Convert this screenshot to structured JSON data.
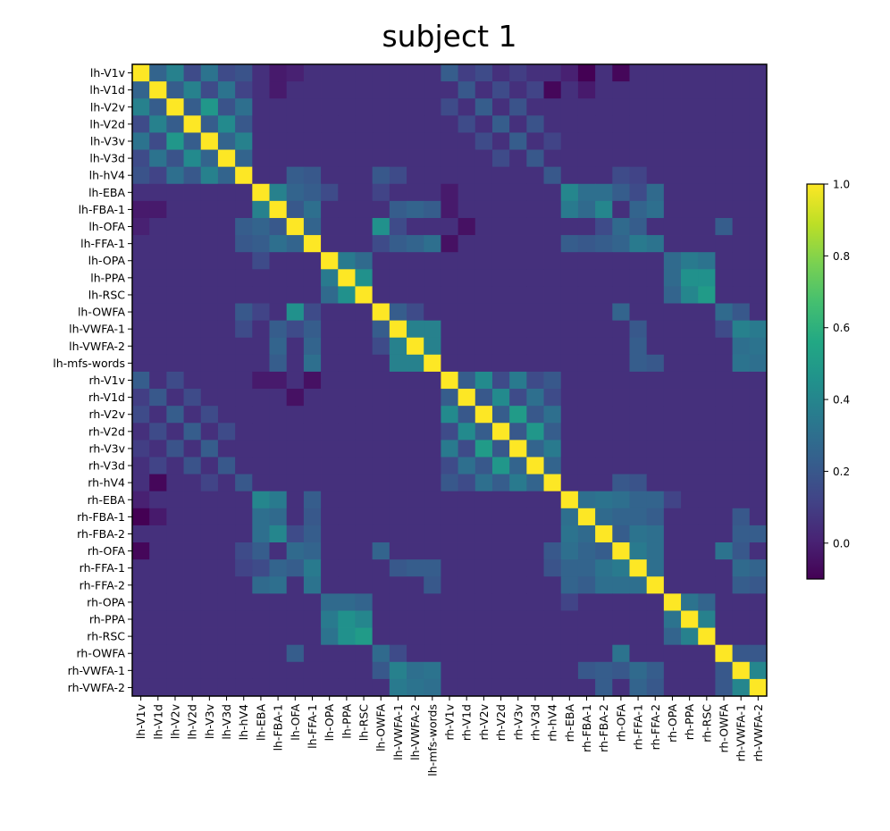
{
  "chart_data": {
    "type": "heatmap",
    "title": "subject 1",
    "xlabel": "",
    "ylabel": "",
    "labels": [
      "lh-V1v",
      "lh-V1d",
      "lh-V2v",
      "lh-V2d",
      "lh-V3v",
      "lh-V3d",
      "lh-hV4",
      "lh-EBA",
      "lh-FBA-1",
      "lh-OFA",
      "lh-FFA-1",
      "lh-OPA",
      "lh-PPA",
      "lh-RSC",
      "lh-OWFA",
      "lh-VWFA-1",
      "lh-VWFA-2",
      "lh-mfs-words",
      "rh-V1v",
      "rh-V1d",
      "rh-V2v",
      "rh-V2d",
      "rh-V3v",
      "rh-V3d",
      "rh-hV4",
      "rh-EBA",
      "rh-FBA-1",
      "rh-FBA-2",
      "rh-OFA",
      "rh-FFA-1",
      "rh-FFA-2",
      "rh-OPA",
      "rh-PPA",
      "rh-RSC",
      "rh-OWFA",
      "rh-VWFA-1",
      "rh-VWFA-2"
    ],
    "colorbar": {
      "range": [
        -0.1,
        1.0
      ],
      "ticks": [
        0.0,
        0.2,
        0.4,
        0.6,
        0.8,
        1.0
      ],
      "tick_labels": [
        "0.0",
        "0.2",
        "0.4",
        "0.6",
        "0.8",
        "1.0"
      ],
      "colormap": "viridis"
    },
    "default_value": 0.05,
    "diagonal_value": 1.0,
    "pairs": [
      [
        "lh-V1v",
        "lh-V1d",
        0.25
      ],
      [
        "lh-V1v",
        "lh-V2v",
        0.38
      ],
      [
        "lh-V1v",
        "lh-V2d",
        0.15
      ],
      [
        "lh-V1v",
        "lh-V3v",
        0.32
      ],
      [
        "lh-V1v",
        "lh-V3d",
        0.15
      ],
      [
        "lh-V1v",
        "lh-hV4",
        0.18
      ],
      [
        "lh-V1d",
        "lh-V2v",
        0.22
      ],
      [
        "lh-V1d",
        "lh-V2d",
        0.38
      ],
      [
        "lh-V1d",
        "lh-V3v",
        0.15
      ],
      [
        "lh-V1d",
        "lh-V3d",
        0.32
      ],
      [
        "lh-V1d",
        "lh-hV4",
        0.12
      ],
      [
        "lh-V2v",
        "lh-V2d",
        0.22
      ],
      [
        "lh-V2v",
        "lh-V3v",
        0.48
      ],
      [
        "lh-V2v",
        "lh-V3d",
        0.18
      ],
      [
        "lh-V2v",
        "lh-hV4",
        0.3
      ],
      [
        "lh-V2d",
        "lh-V3v",
        0.22
      ],
      [
        "lh-V2d",
        "lh-V3d",
        0.42
      ],
      [
        "lh-V2d",
        "lh-hV4",
        0.2
      ],
      [
        "lh-V3v",
        "lh-V3d",
        0.25
      ],
      [
        "lh-V3v",
        "lh-hV4",
        0.38
      ],
      [
        "lh-V3d",
        "lh-hV4",
        0.25
      ],
      [
        "lh-hV4",
        "lh-OFA",
        0.22
      ],
      [
        "lh-hV4",
        "lh-FFA-1",
        0.2
      ],
      [
        "lh-hV4",
        "lh-OWFA",
        0.2
      ],
      [
        "lh-hV4",
        "lh-VWFA-1",
        0.15
      ],
      [
        "lh-EBA",
        "lh-FBA-1",
        0.38
      ],
      [
        "lh-EBA",
        "lh-OFA",
        0.25
      ],
      [
        "lh-EBA",
        "lh-FFA-1",
        0.22
      ],
      [
        "lh-EBA",
        "lh-OPA",
        0.15
      ],
      [
        "lh-EBA",
        "lh-OWFA",
        0.12
      ],
      [
        "lh-FBA-1",
        "lh-OFA",
        0.2
      ],
      [
        "lh-FBA-1",
        "lh-FFA-1",
        0.3
      ],
      [
        "lh-FBA-1",
        "lh-VWFA-1",
        0.22
      ],
      [
        "lh-FBA-1",
        "lh-VWFA-2",
        0.25
      ],
      [
        "lh-FBA-1",
        "lh-mfs-words",
        0.22
      ],
      [
        "lh-OFA",
        "lh-FFA-1",
        0.25
      ],
      [
        "lh-OFA",
        "lh-OWFA",
        0.45
      ],
      [
        "lh-OFA",
        "lh-VWFA-1",
        0.15
      ],
      [
        "lh-FFA-1",
        "lh-VWFA-1",
        0.22
      ],
      [
        "lh-FFA-1",
        "lh-VWFA-2",
        0.25
      ],
      [
        "lh-FFA-1",
        "lh-mfs-words",
        0.3
      ],
      [
        "lh-FFA-1",
        "lh-OWFA",
        0.15
      ],
      [
        "lh-OPA",
        "lh-PPA",
        0.35
      ],
      [
        "lh-OPA",
        "lh-RSC",
        0.28
      ],
      [
        "lh-PPA",
        "lh-RSC",
        0.45
      ],
      [
        "lh-OWFA",
        "lh-VWFA-1",
        0.22
      ],
      [
        "lh-OWFA",
        "lh-VWFA-2",
        0.15
      ],
      [
        "lh-VWFA-1",
        "lh-VWFA-2",
        0.38
      ],
      [
        "lh-VWFA-1",
        "lh-mfs-words",
        0.38
      ],
      [
        "lh-VWFA-2",
        "lh-mfs-words",
        0.38
      ],
      [
        "rh-V1v",
        "rh-V1d",
        0.22
      ],
      [
        "rh-V1v",
        "rh-V2v",
        0.42
      ],
      [
        "rh-V1v",
        "rh-V2d",
        0.15
      ],
      [
        "rh-V1v",
        "rh-V3v",
        0.35
      ],
      [
        "rh-V1v",
        "rh-V3d",
        0.15
      ],
      [
        "rh-V1v",
        "rh-hV4",
        0.2
      ],
      [
        "rh-V1d",
        "rh-V2v",
        0.2
      ],
      [
        "rh-V1d",
        "rh-V2d",
        0.42
      ],
      [
        "rh-V1d",
        "rh-V3v",
        0.15
      ],
      [
        "rh-V1d",
        "rh-V3d",
        0.3
      ],
      [
        "rh-V1d",
        "rh-hV4",
        0.15
      ],
      [
        "rh-V2v",
        "rh-V2d",
        0.22
      ],
      [
        "rh-V2v",
        "rh-V3v",
        0.5
      ],
      [
        "rh-V2v",
        "rh-V3d",
        0.2
      ],
      [
        "rh-V2v",
        "rh-hV4",
        0.3
      ],
      [
        "rh-V2d",
        "rh-V3v",
        0.2
      ],
      [
        "rh-V2d",
        "rh-V3d",
        0.48
      ],
      [
        "rh-V2d",
        "rh-hV4",
        0.22
      ],
      [
        "rh-V3v",
        "rh-V3d",
        0.25
      ],
      [
        "rh-V3v",
        "rh-hV4",
        0.35
      ],
      [
        "rh-V3d",
        "rh-hV4",
        0.25
      ],
      [
        "rh-hV4",
        "rh-OFA",
        0.2
      ],
      [
        "rh-hV4",
        "rh-FFA-1",
        0.18
      ],
      [
        "rh-EBA",
        "rh-FBA-1",
        0.3
      ],
      [
        "rh-EBA",
        "rh-FBA-2",
        0.32
      ],
      [
        "rh-EBA",
        "rh-OFA",
        0.3
      ],
      [
        "rh-EBA",
        "rh-FFA-1",
        0.25
      ],
      [
        "rh-EBA",
        "rh-FFA-2",
        0.25
      ],
      [
        "rh-EBA",
        "rh-OPA",
        0.12
      ],
      [
        "rh-FBA-1",
        "rh-FBA-2",
        0.28
      ],
      [
        "rh-FBA-1",
        "rh-OFA",
        0.25
      ],
      [
        "rh-FBA-1",
        "rh-FFA-1",
        0.25
      ],
      [
        "rh-FBA-1",
        "rh-FFA-2",
        0.22
      ],
      [
        "rh-FBA-1",
        "rh-VWFA-1",
        0.2
      ],
      [
        "rh-FBA-2",
        "rh-OFA",
        0.22
      ],
      [
        "rh-FBA-2",
        "rh-FFA-1",
        0.32
      ],
      [
        "rh-FBA-2",
        "rh-FFA-2",
        0.3
      ],
      [
        "rh-FBA-2",
        "rh-VWFA-1",
        0.22
      ],
      [
        "rh-FBA-2",
        "rh-VWFA-2",
        0.22
      ],
      [
        "rh-OFA",
        "rh-FFA-1",
        0.35
      ],
      [
        "rh-OFA",
        "rh-FFA-2",
        0.3
      ],
      [
        "rh-OFA",
        "rh-OWFA",
        0.32
      ],
      [
        "rh-OFA",
        "rh-VWFA-1",
        0.2
      ],
      [
        "rh-FFA-1",
        "rh-FFA-2",
        0.3
      ],
      [
        "rh-FFA-1",
        "rh-VWFA-1",
        0.28
      ],
      [
        "rh-FFA-1",
        "rh-VWFA-2",
        0.25
      ],
      [
        "rh-FFA-2",
        "rh-VWFA-1",
        0.22
      ],
      [
        "rh-FFA-2",
        "rh-VWFA-2",
        0.2
      ],
      [
        "rh-OPA",
        "rh-PPA",
        0.32
      ],
      [
        "rh-OPA",
        "rh-RSC",
        0.25
      ],
      [
        "rh-PPA",
        "rh-RSC",
        0.38
      ],
      [
        "rh-OWFA",
        "rh-VWFA-1",
        0.2
      ],
      [
        "rh-OWFA",
        "rh-VWFA-2",
        0.2
      ],
      [
        "rh-VWFA-1",
        "rh-VWFA-2",
        0.4
      ],
      [
        "lh-V1v",
        "rh-V1v",
        0.22
      ],
      [
        "lh-V1v",
        "rh-V1d",
        0.1
      ],
      [
        "lh-V1v",
        "rh-V2v",
        0.15
      ],
      [
        "lh-V1v",
        "rh-V3v",
        0.1
      ],
      [
        "lh-V1d",
        "rh-V1d",
        0.2
      ],
      [
        "lh-V1d",
        "rh-V2d",
        0.15
      ],
      [
        "lh-V1d",
        "rh-V3d",
        0.12
      ],
      [
        "lh-V2v",
        "rh-V2v",
        0.22
      ],
      [
        "lh-V2v",
        "rh-V3v",
        0.18
      ],
      [
        "lh-V2v",
        "rh-V1v",
        0.15
      ],
      [
        "lh-V2d",
        "rh-V2d",
        0.22
      ],
      [
        "lh-V2d",
        "rh-V3d",
        0.18
      ],
      [
        "lh-V2d",
        "rh-V1d",
        0.15
      ],
      [
        "lh-V3v",
        "rh-V3v",
        0.22
      ],
      [
        "lh-V3v",
        "rh-V2v",
        0.15
      ],
      [
        "lh-V3v",
        "rh-hV4",
        0.12
      ],
      [
        "lh-V3d",
        "rh-V3d",
        0.2
      ],
      [
        "lh-V3d",
        "rh-V2d",
        0.15
      ],
      [
        "lh-hV4",
        "rh-hV4",
        0.2
      ],
      [
        "lh-hV4",
        "rh-OFA",
        0.15
      ],
      [
        "lh-hV4",
        "rh-FFA-1",
        0.12
      ],
      [
        "lh-EBA",
        "rh-EBA",
        0.4
      ],
      [
        "lh-EBA",
        "rh-FBA-1",
        0.3
      ],
      [
        "lh-EBA",
        "rh-FBA-2",
        0.3
      ],
      [
        "lh-EBA",
        "rh-OFA",
        0.22
      ],
      [
        "lh-EBA",
        "rh-FFA-1",
        0.15
      ],
      [
        "lh-EBA",
        "rh-FFA-2",
        0.28
      ],
      [
        "lh-FBA-1",
        "rh-EBA",
        0.35
      ],
      [
        "lh-FBA-1",
        "rh-FBA-1",
        0.28
      ],
      [
        "lh-FBA-1",
        "rh-FBA-2",
        0.4
      ],
      [
        "lh-FBA-1",
        "rh-FFA-1",
        0.25
      ],
      [
        "lh-FBA-1",
        "rh-FFA-2",
        0.3
      ],
      [
        "lh-OFA",
        "rh-OFA",
        0.28
      ],
      [
        "lh-OFA",
        "rh-FFA-1",
        0.22
      ],
      [
        "lh-OFA",
        "rh-OWFA",
        0.22
      ],
      [
        "lh-OFA",
        "rh-FBA-2",
        0.15
      ],
      [
        "lh-FFA-1",
        "rh-FFA-1",
        0.35
      ],
      [
        "lh-FFA-1",
        "rh-FFA-2",
        0.32
      ],
      [
        "lh-FFA-1",
        "rh-EBA",
        0.22
      ],
      [
        "lh-FFA-1",
        "rh-FBA-1",
        0.2
      ],
      [
        "lh-FFA-1",
        "rh-FBA-2",
        0.22
      ],
      [
        "lh-FFA-1",
        "rh-OFA",
        0.25
      ],
      [
        "lh-OPA",
        "rh-OPA",
        0.28
      ],
      [
        "lh-OPA",
        "rh-PPA",
        0.35
      ],
      [
        "lh-OPA",
        "rh-RSC",
        0.32
      ],
      [
        "lh-PPA",
        "rh-OPA",
        0.28
      ],
      [
        "lh-PPA",
        "rh-PPA",
        0.45
      ],
      [
        "lh-PPA",
        "rh-RSC",
        0.45
      ],
      [
        "lh-RSC",
        "rh-OPA",
        0.25
      ],
      [
        "lh-RSC",
        "rh-PPA",
        0.4
      ],
      [
        "lh-RSC",
        "rh-RSC",
        0.5
      ],
      [
        "lh-OWFA",
        "rh-OWFA",
        0.28
      ],
      [
        "lh-OWFA",
        "rh-OFA",
        0.25
      ],
      [
        "lh-OWFA",
        "rh-VWFA-1",
        0.2
      ],
      [
        "lh-VWFA-1",
        "rh-VWFA-1",
        0.38
      ],
      [
        "lh-VWFA-1",
        "rh-VWFA-2",
        0.35
      ],
      [
        "lh-VWFA-1",
        "rh-FFA-1",
        0.2
      ],
      [
        "lh-VWFA-1",
        "rh-OWFA",
        0.15
      ],
      [
        "lh-VWFA-2",
        "rh-VWFA-1",
        0.3
      ],
      [
        "lh-VWFA-2",
        "rh-VWFA-2",
        0.32
      ],
      [
        "lh-VWFA-2",
        "rh-FFA-1",
        0.22
      ],
      [
        "lh-mfs-words",
        "rh-VWFA-1",
        0.32
      ],
      [
        "lh-mfs-words",
        "rh-VWFA-2",
        0.3
      ],
      [
        "lh-mfs-words",
        "rh-FFA-1",
        0.22
      ],
      [
        "lh-mfs-words",
        "rh-FFA-2",
        0.2
      ],
      [
        "lh-V1v",
        "rh-FBA-1",
        -0.1
      ],
      [
        "lh-V1v",
        "rh-OFA",
        -0.08
      ],
      [
        "lh-V1v",
        "rh-EBA",
        0.0
      ],
      [
        "lh-V1d",
        "rh-hV4",
        -0.08
      ],
      [
        "lh-V1d",
        "rh-FBA-1",
        -0.02
      ],
      [
        "lh-V1v",
        "lh-OFA",
        0.0
      ],
      [
        "lh-V1v",
        "lh-FBA-1",
        -0.02
      ],
      [
        "lh-V1d",
        "lh-FBA-1",
        -0.02
      ],
      [
        "lh-OFA",
        "rh-V1d",
        -0.05
      ],
      [
        "lh-FFA-1",
        "rh-V1v",
        -0.05
      ],
      [
        "lh-FBA-1",
        "rh-V1v",
        -0.02
      ],
      [
        "lh-EBA",
        "rh-V1v",
        -0.02
      ],
      [
        "lh-V1d",
        "rh-V1v",
        0.05
      ]
    ]
  }
}
